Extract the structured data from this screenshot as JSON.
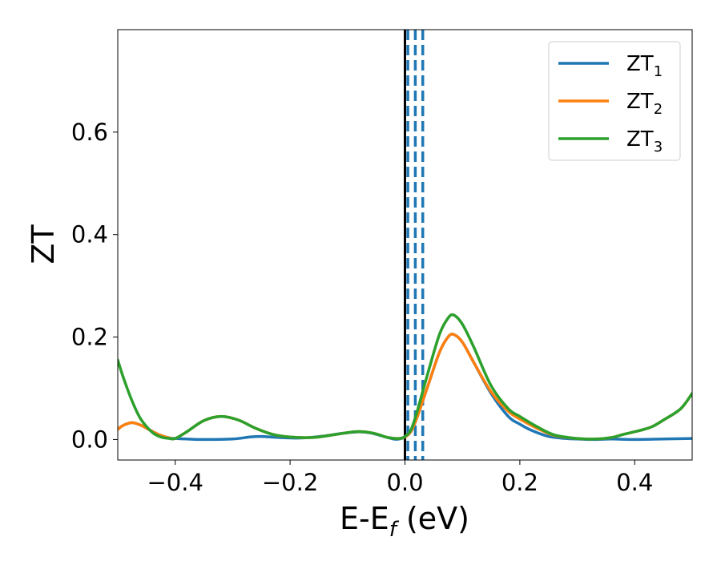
{
  "chart_data": {
    "type": "line",
    "xlabel": {
      "main": "E-E",
      "subscript": "f",
      "suffix": " (eV)"
    },
    "ylabel": "ZT",
    "xlim": [
      -0.5,
      0.5
    ],
    "ylim": [
      -0.04,
      0.8
    ],
    "x_ticks": [
      -0.4,
      -0.2,
      0.0,
      0.2,
      0.4
    ],
    "x_tick_labels": [
      "−0.4",
      "−0.2",
      "0.0",
      "0.2",
      "0.4"
    ],
    "y_ticks": [
      0.0,
      0.2,
      0.4,
      0.6
    ],
    "y_tick_labels": [
      "0.0",
      "0.2",
      "0.4",
      "0.6"
    ],
    "grid": false,
    "legend_position": "top-right",
    "colors": {
      "zt1": "#1f77b4",
      "zt2": "#ff7f0e",
      "zt3": "#2ca02c",
      "fermi": "#000000",
      "dashed": "#1f77b4"
    },
    "vertical_lines": [
      {
        "x": 0.0,
        "style": "solid",
        "color": "#000000"
      },
      {
        "x": 0.005,
        "style": "dashed",
        "color": "#1f77b4"
      },
      {
        "x": 0.018,
        "style": "dashed",
        "color": "#1f77b4"
      },
      {
        "x": 0.031,
        "style": "dashed",
        "color": "#1f77b4"
      }
    ],
    "series": [
      {
        "name": "ZT",
        "subscript": "1",
        "color": "#1f77b4",
        "x": [
          -0.5,
          -0.49,
          -0.475,
          -0.46,
          -0.44,
          -0.425,
          -0.41,
          -0.4,
          -0.38,
          -0.35,
          -0.3,
          -0.27,
          -0.25,
          -0.22,
          -0.18,
          -0.14,
          -0.11,
          -0.08,
          -0.06,
          -0.04,
          -0.02,
          -0.01,
          0.0,
          0.01,
          0.02,
          0.04,
          0.06,
          0.075,
          0.085,
          0.1,
          0.12,
          0.15,
          0.18,
          0.2,
          0.22,
          0.25,
          0.28,
          0.3,
          0.33,
          0.36,
          0.4,
          0.45,
          0.5
        ],
        "y": [
          0.02,
          0.028,
          0.033,
          0.028,
          0.016,
          0.008,
          0.003,
          0.002,
          0.001,
          0.0,
          0.001,
          0.005,
          0.006,
          0.004,
          0.003,
          0.007,
          0.012,
          0.015,
          0.013,
          0.007,
          0.001,
          0.001,
          0.005,
          0.015,
          0.04,
          0.105,
          0.17,
          0.2,
          0.205,
          0.19,
          0.15,
          0.09,
          0.045,
          0.03,
          0.018,
          0.006,
          0.002,
          0.001,
          0.0,
          0.001,
          0.0,
          0.001,
          0.002
        ]
      },
      {
        "name": "ZT",
        "subscript": "2",
        "color": "#ff7f0e",
        "x": [
          -0.5,
          -0.49,
          -0.475,
          -0.46,
          -0.44,
          -0.425,
          -0.41,
          -0.4,
          -0.38,
          -0.35,
          -0.32,
          -0.29,
          -0.26,
          -0.23,
          -0.2,
          -0.16,
          -0.12,
          -0.09,
          -0.07,
          -0.05,
          -0.03,
          -0.01,
          0.0,
          0.01,
          0.02,
          0.04,
          0.06,
          0.075,
          0.085,
          0.1,
          0.12,
          0.15,
          0.18,
          0.2,
          0.23,
          0.26,
          0.3,
          0.33,
          0.36,
          0.38,
          0.41,
          0.43,
          0.45,
          0.48,
          0.5
        ],
        "y": [
          0.02,
          0.028,
          0.033,
          0.028,
          0.016,
          0.008,
          0.003,
          0.002,
          0.015,
          0.037,
          0.045,
          0.038,
          0.022,
          0.01,
          0.005,
          0.004,
          0.01,
          0.015,
          0.015,
          0.011,
          0.004,
          0.002,
          0.005,
          0.015,
          0.04,
          0.105,
          0.17,
          0.2,
          0.205,
          0.19,
          0.15,
          0.093,
          0.055,
          0.04,
          0.022,
          0.008,
          0.002,
          0.001,
          0.004,
          0.01,
          0.018,
          0.025,
          0.038,
          0.06,
          0.09
        ]
      },
      {
        "name": "ZT",
        "subscript": "3",
        "color": "#2ca02c",
        "x": [
          -0.5,
          -0.49,
          -0.475,
          -0.46,
          -0.44,
          -0.425,
          -0.41,
          -0.4,
          -0.38,
          -0.35,
          -0.32,
          -0.29,
          -0.26,
          -0.23,
          -0.2,
          -0.16,
          -0.12,
          -0.09,
          -0.07,
          -0.05,
          -0.03,
          -0.01,
          0.0,
          0.01,
          0.02,
          0.04,
          0.06,
          0.075,
          0.085,
          0.1,
          0.12,
          0.15,
          0.18,
          0.2,
          0.23,
          0.26,
          0.3,
          0.33,
          0.36,
          0.38,
          0.41,
          0.43,
          0.45,
          0.48,
          0.5
        ],
        "y": [
          0.155,
          0.12,
          0.075,
          0.04,
          0.014,
          0.005,
          0.002,
          0.002,
          0.015,
          0.037,
          0.045,
          0.038,
          0.022,
          0.01,
          0.005,
          0.004,
          0.01,
          0.015,
          0.015,
          0.011,
          0.004,
          0.002,
          0.006,
          0.018,
          0.05,
          0.13,
          0.205,
          0.237,
          0.243,
          0.225,
          0.18,
          0.105,
          0.06,
          0.045,
          0.025,
          0.009,
          0.002,
          0.001,
          0.004,
          0.01,
          0.018,
          0.025,
          0.038,
          0.06,
          0.09
        ]
      }
    ]
  }
}
